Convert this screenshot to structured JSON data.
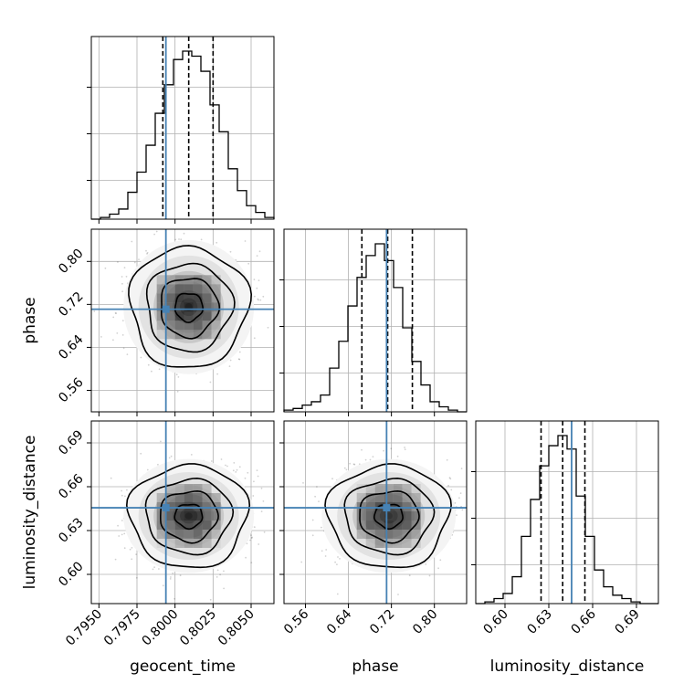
{
  "chart_data": {
    "type": "corner",
    "colors": {
      "truth": "#4682b4",
      "hist": "#000000",
      "grid": "#b0b0b0"
    },
    "parameters": [
      {
        "name": "geocent_time",
        "range": [
          0.7945,
          0.8065
        ],
        "ticks": [
          0.795,
          0.7975,
          0.8,
          0.8025,
          0.805
        ],
        "tick_labels": [
          "0.7950",
          "0.7975",
          "0.8000",
          "0.8025",
          "0.8050"
        ],
        "truth": 0.7994,
        "quantiles": [
          0.7992,
          0.8009,
          0.8025
        ],
        "mean": 0.8009,
        "sigma": 0.00165
      },
      {
        "name": "phase",
        "range": [
          0.52,
          0.86
        ],
        "ticks": [
          0.56,
          0.64,
          0.72,
          0.8
        ],
        "tick_labels": [
          "0.56",
          "0.64",
          "0.72",
          "0.80"
        ],
        "truth": 0.711,
        "quantiles": [
          0.665,
          0.713,
          0.759
        ],
        "mean": 0.715,
        "sigma": 0.048
      },
      {
        "name": "luminosity_distance",
        "range": [
          0.58,
          0.705
        ],
        "ticks": [
          0.6,
          0.63,
          0.66,
          0.69
        ],
        "tick_labels": [
          "0.60",
          "0.63",
          "0.66",
          "0.69"
        ],
        "truth": 0.6456,
        "quantiles": [
          0.6247,
          0.6395,
          0.6547
        ],
        "mean": 0.64,
        "sigma": 0.015
      }
    ],
    "histograms": [
      [
        0.0,
        0.01,
        0.03,
        0.06,
        0.16,
        0.28,
        0.44,
        0.63,
        0.8,
        0.95,
        1.0,
        0.97,
        0.88,
        0.68,
        0.52,
        0.3,
        0.17,
        0.08,
        0.04,
        0.01
      ],
      [
        0.01,
        0.02,
        0.04,
        0.06,
        0.1,
        0.26,
        0.42,
        0.63,
        0.8,
        0.93,
        1.0,
        0.9,
        0.74,
        0.5,
        0.3,
        0.16,
        0.06,
        0.03,
        0.01,
        0.0
      ],
      [
        0.0,
        0.01,
        0.03,
        0.06,
        0.16,
        0.4,
        0.62,
        0.82,
        0.94,
        1.0,
        0.92,
        0.64,
        0.4,
        0.2,
        0.1,
        0.05,
        0.03,
        0.01,
        0.0,
        0.0
      ]
    ]
  }
}
